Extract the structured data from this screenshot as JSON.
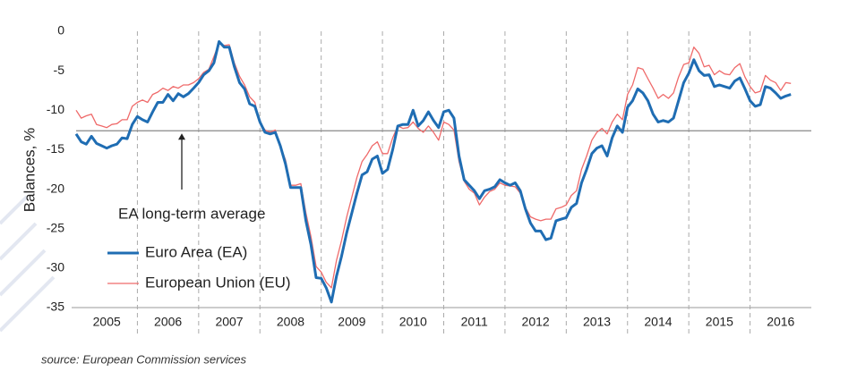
{
  "chart_data": {
    "type": "line",
    "y_label": "Balances, %",
    "source": "source: European Commission services",
    "x": [
      2005,
      2005.083,
      2005.167,
      2005.25,
      2005.333,
      2005.417,
      2005.5,
      2005.583,
      2005.667,
      2005.75,
      2005.833,
      2005.917,
      2006,
      2006.083,
      2006.167,
      2006.25,
      2006.333,
      2006.417,
      2006.5,
      2006.583,
      2006.667,
      2006.75,
      2006.833,
      2006.917,
      2007,
      2007.083,
      2007.167,
      2007.25,
      2007.333,
      2007.417,
      2007.5,
      2007.583,
      2007.667,
      2007.75,
      2007.833,
      2007.917,
      2008,
      2008.083,
      2008.167,
      2008.25,
      2008.333,
      2008.417,
      2008.5,
      2008.583,
      2008.667,
      2008.75,
      2008.833,
      2008.917,
      2009,
      2009.083,
      2009.167,
      2009.25,
      2009.333,
      2009.417,
      2009.5,
      2009.583,
      2009.667,
      2009.75,
      2009.833,
      2009.917,
      2010,
      2010.083,
      2010.167,
      2010.25,
      2010.333,
      2010.417,
      2010.5,
      2010.583,
      2010.667,
      2010.75,
      2010.833,
      2010.917,
      2011,
      2011.083,
      2011.167,
      2011.25,
      2011.333,
      2011.417,
      2011.5,
      2011.583,
      2011.667,
      2011.75,
      2011.833,
      2011.917,
      2012,
      2012.083,
      2012.167,
      2012.25,
      2012.333,
      2012.417,
      2012.5,
      2012.583,
      2012.667,
      2012.75,
      2012.833,
      2012.917,
      2013,
      2013.083,
      2013.167,
      2013.25,
      2013.333,
      2013.417,
      2013.5,
      2013.583,
      2013.667,
      2013.75,
      2013.833,
      2013.917,
      2014,
      2014.083,
      2014.167,
      2014.25,
      2014.333,
      2014.417,
      2014.5,
      2014.583,
      2014.667,
      2014.75,
      2014.833,
      2014.917,
      2015,
      2015.083,
      2015.167,
      2015.25,
      2015.333,
      2015.417,
      2015.5,
      2015.583,
      2015.667,
      2015.75,
      2015.833,
      2015.917,
      2016,
      2016.083,
      2016.167,
      2016.25,
      2016.333,
      2016.417,
      2016.5,
      2016.583,
      2016.667
    ],
    "series": [
      {
        "name": "Euro Area (EA)",
        "color": "#1f6db3",
        "width": 3,
        "values": [
          -13,
          -14,
          -14.3,
          -13.3,
          -14.2,
          -14.5,
          -14.8,
          -14.5,
          -14.3,
          -13.5,
          -13.6,
          -11.8,
          -10.8,
          -11.2,
          -11.5,
          -10.2,
          -9,
          -9,
          -8,
          -8.8,
          -7.9,
          -8.3,
          -7.9,
          -7.2,
          -6.5,
          -5.5,
          -5,
          -4,
          -1.3,
          -2,
          -2,
          -4.5,
          -6.5,
          -7.3,
          -9.2,
          -9.5,
          -11.5,
          -12.8,
          -13,
          -12.8,
          -14.5,
          -16.8,
          -19.8,
          -19.8,
          -19.8,
          -24,
          -27,
          -31.2,
          -31.3,
          -32.5,
          -34.3,
          -31,
          -28.5,
          -25.5,
          -23,
          -20.5,
          -18.2,
          -17.8,
          -16.2,
          -15.8,
          -18,
          -17.5,
          -15,
          -12,
          -11.8,
          -11.8,
          -10,
          -12,
          -11.3,
          -10.2,
          -11.3,
          -12.2,
          -10.2,
          -10,
          -11,
          -15.8,
          -18.8,
          -19.5,
          -20.2,
          -21.2,
          -20.2,
          -20,
          -19.7,
          -18.8,
          -19.2,
          -19.5,
          -19.2,
          -20.2,
          -22.5,
          -24.3,
          -25.3,
          -25.3,
          -26.4,
          -26.2,
          -24,
          -23.8,
          -23.6,
          -22.3,
          -21.8,
          -19.2,
          -17.5,
          -15.5,
          -14.8,
          -14.5,
          -15.8,
          -13.5,
          -12,
          -12.8,
          -9.6,
          -8.8,
          -7.3,
          -7.8,
          -8.8,
          -10.5,
          -11.5,
          -11.3,
          -11.5,
          -11,
          -8.8,
          -6.5,
          -5.3,
          -3.6,
          -5,
          -5.6,
          -5.5,
          -7,
          -6.8,
          -7,
          -7.2,
          -6.3,
          -5.9,
          -7.3,
          -8.8,
          -9.5,
          -9.3,
          -7,
          -7.2,
          -7.8,
          -8.5,
          -8.2,
          -8
        ]
      },
      {
        "name": "European Union (EU)",
        "color": "#ef6a6a",
        "width": 1.3,
        "values": [
          -10,
          -11,
          -10.7,
          -10.5,
          -11.8,
          -12,
          -12.2,
          -11.8,
          -11.7,
          -11.2,
          -11.2,
          -9.5,
          -9,
          -8.7,
          -9,
          -8,
          -7.7,
          -7.2,
          -7.5,
          -7,
          -7.2,
          -6.8,
          -6.8,
          -6.5,
          -6,
          -5.2,
          -4.8,
          -3.2,
          -1.5,
          -1.8,
          -1.7,
          -4,
          -5.7,
          -6.8,
          -8.3,
          -9,
          -11.5,
          -12.5,
          -12.8,
          -12.5,
          -14.5,
          -16.3,
          -19.5,
          -19.5,
          -19.3,
          -23,
          -26,
          -29.8,
          -30.5,
          -31.8,
          -32.5,
          -29,
          -26.5,
          -23.5,
          -21,
          -18.5,
          -16.5,
          -15.6,
          -14.5,
          -14,
          -15.5,
          -15.5,
          -13.5,
          -12,
          -12.3,
          -12.2,
          -11.5,
          -12.3,
          -12.8,
          -12,
          -12.8,
          -13.8,
          -11.5,
          -11.8,
          -12.5,
          -16.5,
          -19,
          -20,
          -20.5,
          -22,
          -21,
          -20.3,
          -20,
          -19.2,
          -19.5,
          -19.6,
          -19.7,
          -20.5,
          -22.3,
          -23.5,
          -23.8,
          -24,
          -23.8,
          -23.8,
          -22.5,
          -22.3,
          -22,
          -20.8,
          -20.2,
          -17.5,
          -15.8,
          -13.8,
          -12.8,
          -12.3,
          -13,
          -11.5,
          -10.5,
          -11.2,
          -8,
          -6.8,
          -4.6,
          -4.8,
          -6,
          -7.2,
          -8.5,
          -8,
          -8.5,
          -7.8,
          -5.8,
          -4.2,
          -4,
          -2,
          -2.8,
          -4.5,
          -4.3,
          -5.5,
          -5,
          -5.4,
          -5.5,
          -4.6,
          -4.1,
          -5.8,
          -7,
          -7.8,
          -7.6,
          -5.6,
          -6.2,
          -6.5,
          -7.5,
          -6.5,
          -6.6
        ]
      }
    ],
    "reference_line": {
      "value": -12.6,
      "label": "EA long-term average",
      "color": "#888888"
    },
    "xlim": [
      2005,
      2017
    ],
    "ylim": [
      -35,
      0
    ],
    "yticks": [
      0,
      -5,
      -10,
      -15,
      -20,
      -25,
      -30,
      -35
    ],
    "xticks": [
      {
        "value": 2005.5,
        "label": "2005"
      },
      {
        "value": 2006.5,
        "label": "2006"
      },
      {
        "value": 2007.5,
        "label": "2007"
      },
      {
        "value": 2008.5,
        "label": "2008"
      },
      {
        "value": 2009.5,
        "label": "2009"
      },
      {
        "value": 2010.5,
        "label": "2010"
      },
      {
        "value": 2011.5,
        "label": "2011"
      },
      {
        "value": 2012.5,
        "label": "2012"
      },
      {
        "value": 2013.5,
        "label": "2013"
      },
      {
        "value": 2014.5,
        "label": "2014"
      },
      {
        "value": 2015.5,
        "label": "2015"
      },
      {
        "value": 2016.5,
        "label": "2016"
      }
    ],
    "xgrid": [
      2006,
      2007,
      2008,
      2009,
      2010,
      2011,
      2012,
      2013,
      2014,
      2015,
      2016
    ]
  }
}
